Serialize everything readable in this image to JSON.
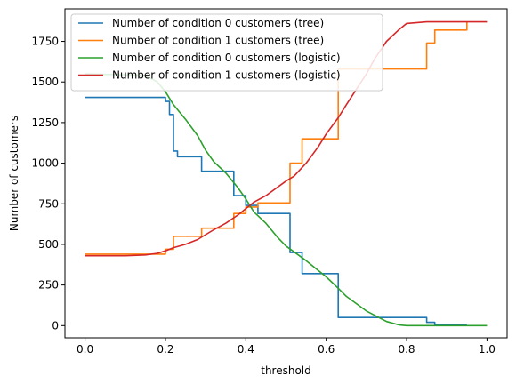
{
  "chart_data": {
    "type": "line",
    "title": "",
    "xlabel": "threshold",
    "ylabel": "Number of customers",
    "xlim": [
      -0.05,
      1.05
    ],
    "ylim": [
      -75,
      1950
    ],
    "xticks": [
      0.0,
      0.2,
      0.4,
      0.6,
      0.8,
      1.0
    ],
    "xtick_labels": [
      "0.0",
      "0.2",
      "0.4",
      "0.6",
      "0.8",
      "1.0"
    ],
    "yticks": [
      0,
      250,
      500,
      750,
      1000,
      1250,
      1500,
      1750
    ],
    "ytick_labels": [
      "0",
      "250",
      "500",
      "750",
      "1000",
      "1250",
      "1500",
      "1750"
    ],
    "grid": false,
    "legend_position": "upper-left",
    "series": [
      {
        "name": "Number of condition 0 customers (tree)",
        "color": "#1f77b4",
        "step": true,
        "x": [
          0.0,
          0.2,
          0.2,
          0.21,
          0.21,
          0.22,
          0.22,
          0.23,
          0.23,
          0.29,
          0.29,
          0.37,
          0.37,
          0.4,
          0.4,
          0.43,
          0.43,
          0.51,
          0.51,
          0.54,
          0.54,
          0.63,
          0.63,
          0.85,
          0.85,
          0.87,
          0.87,
          0.95
        ],
        "y": [
          1405,
          1405,
          1380,
          1380,
          1300,
          1300,
          1075,
          1075,
          1040,
          1040,
          950,
          950,
          800,
          800,
          740,
          740,
          690,
          690,
          450,
          450,
          320,
          320,
          50,
          50,
          20,
          20,
          5,
          5
        ]
      },
      {
        "name": "Number of condition 1 customers (tree)",
        "color": "#ff7f0e",
        "step": true,
        "x": [
          0.0,
          0.2,
          0.2,
          0.22,
          0.22,
          0.29,
          0.29,
          0.37,
          0.37,
          0.4,
          0.4,
          0.43,
          0.43,
          0.51,
          0.51,
          0.54,
          0.54,
          0.63,
          0.63,
          0.85,
          0.85,
          0.87,
          0.87,
          0.95,
          0.95
        ],
        "y": [
          440,
          440,
          470,
          470,
          550,
          550,
          600,
          600,
          690,
          690,
          730,
          730,
          755,
          755,
          1000,
          1000,
          1150,
          1150,
          1580,
          1580,
          1740,
          1740,
          1820,
          1820,
          1870
        ]
      },
      {
        "name": "Number of condition 0 customers (logistic)",
        "color": "#2ca02c",
        "step": false,
        "x": [
          0.0,
          0.15,
          0.18,
          0.2,
          0.22,
          0.25,
          0.28,
          0.3,
          0.32,
          0.35,
          0.38,
          0.4,
          0.42,
          0.45,
          0.48,
          0.5,
          0.55,
          0.6,
          0.63,
          0.65,
          0.7,
          0.75,
          0.78,
          0.8,
          0.85,
          0.9,
          0.95,
          1.0
        ],
        "y": [
          1550,
          1540,
          1500,
          1440,
          1360,
          1270,
          1170,
          1080,
          1010,
          940,
          850,
          780,
          700,
          630,
          540,
          490,
          400,
          300,
          230,
          180,
          90,
          25,
          5,
          0,
          0,
          0,
          0,
          0
        ]
      },
      {
        "name": "Number of condition 1 customers (logistic)",
        "color": "#d62728",
        "step": false,
        "x": [
          0.0,
          0.1,
          0.15,
          0.18,
          0.2,
          0.22,
          0.25,
          0.28,
          0.3,
          0.32,
          0.35,
          0.38,
          0.4,
          0.42,
          0.45,
          0.5,
          0.52,
          0.55,
          0.58,
          0.6,
          0.63,
          0.65,
          0.7,
          0.72,
          0.75,
          0.78,
          0.8,
          0.85,
          0.9,
          0.95,
          1.0
        ],
        "y": [
          430,
          430,
          435,
          445,
          460,
          480,
          500,
          530,
          560,
          590,
          630,
          680,
          720,
          760,
          800,
          890,
          920,
          1000,
          1100,
          1180,
          1280,
          1360,
          1550,
          1640,
          1750,
          1820,
          1860,
          1870,
          1870,
          1870,
          1870
        ]
      }
    ]
  }
}
